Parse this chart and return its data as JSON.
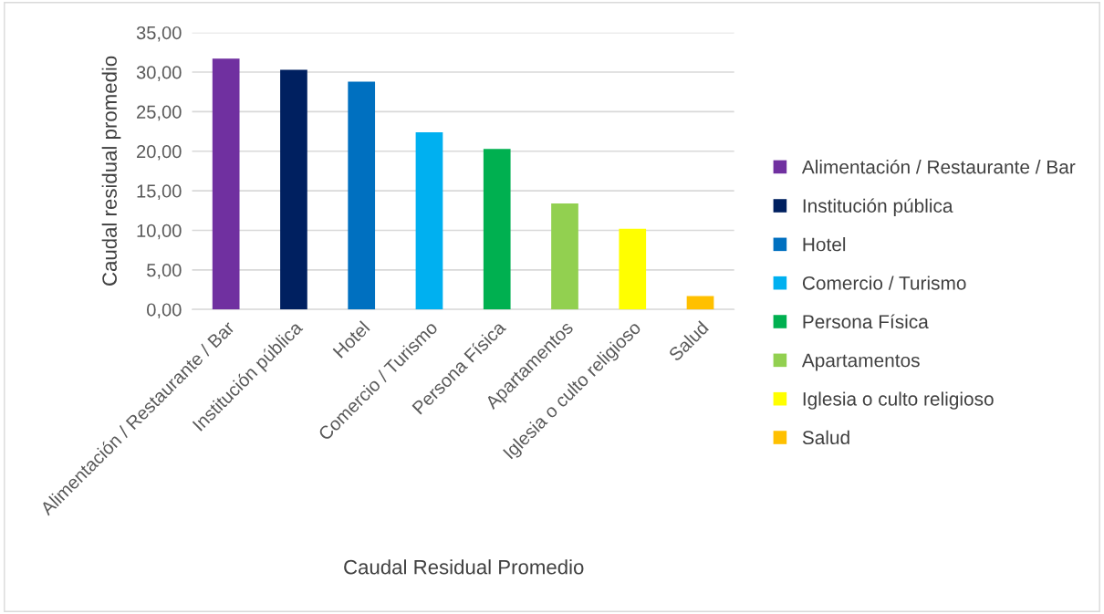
{
  "chart_data": {
    "type": "bar",
    "xlabel": "Caudal Residual Promedio",
    "ylabel": "Caudal residual promedio",
    "categories": [
      "Alimentación / Restaurante / Bar",
      "Institución pública",
      "Hotel",
      "Comercio / Turismo",
      "Persona Física",
      "Apartamentos",
      "Iglesia o culto religioso",
      "Salud"
    ],
    "series": [
      {
        "name": "Alimentación / Restaurante / Bar",
        "color": "#7030a0",
        "values": [
          31.7,
          null,
          null,
          null,
          null,
          null,
          null,
          null
        ]
      },
      {
        "name": "Institución pública",
        "color": "#002060",
        "values": [
          null,
          30.3,
          null,
          null,
          null,
          null,
          null,
          null
        ]
      },
      {
        "name": "Hotel",
        "color": "#0070c0",
        "values": [
          null,
          null,
          28.8,
          null,
          null,
          null,
          null,
          null
        ]
      },
      {
        "name": "Comercio / Turismo",
        "color": "#00b0f0",
        "values": [
          null,
          null,
          null,
          22.4,
          null,
          null,
          null,
          null
        ]
      },
      {
        "name": "Persona Física",
        "color": "#00b050",
        "values": [
          null,
          null,
          null,
          null,
          20.3,
          null,
          null,
          null
        ]
      },
      {
        "name": "Apartamentos",
        "color": "#92d050",
        "values": [
          null,
          null,
          null,
          null,
          null,
          13.4,
          null,
          null
        ]
      },
      {
        "name": "Iglesia o culto religioso",
        "color": "#ffff00",
        "values": [
          null,
          null,
          null,
          null,
          null,
          null,
          10.2,
          null
        ]
      },
      {
        "name": "Salud",
        "color": "#ffc000",
        "values": [
          null,
          null,
          null,
          null,
          null,
          null,
          null,
          1.7
        ]
      }
    ],
    "ylim": [
      0,
      35
    ],
    "yticks": [
      {
        "value": 0,
        "label": "0,00"
      },
      {
        "value": 5,
        "label": "5,00"
      },
      {
        "value": 10,
        "label": "10,00"
      },
      {
        "value": 15,
        "label": "15,00"
      },
      {
        "value": 20,
        "label": "20,00"
      },
      {
        "value": 25,
        "label": "25,00"
      },
      {
        "value": 30,
        "label": "30,00"
      },
      {
        "value": 35,
        "label": "35,00"
      }
    ],
    "grid": "y",
    "legend": "right"
  }
}
